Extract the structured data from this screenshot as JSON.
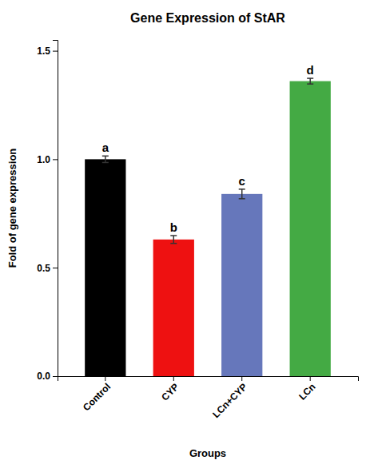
{
  "chart_data": {
    "type": "bar",
    "title": "Gene Expression of StAR",
    "xlabel": "Groups",
    "ylabel": "Fold of gene expression",
    "categories": [
      "Control",
      "CYP",
      "LCn+CYP",
      "LCn"
    ],
    "values": [
      1.0,
      0.63,
      0.84,
      1.36
    ],
    "errors": [
      0.015,
      0.018,
      0.022,
      0.013
    ],
    "colors": [
      "#000000",
      "#ee1111",
      "#6677bb",
      "#44aa44"
    ],
    "letters": [
      "a",
      "b",
      "c",
      "d"
    ],
    "ylim": [
      0,
      1.55
    ],
    "yticks": [
      {
        "value": 0.0,
        "label": "0.0"
      },
      0.5,
      {
        "value": 1.0,
        "label": "1.0"
      },
      1.5
    ],
    "grid": false
  }
}
